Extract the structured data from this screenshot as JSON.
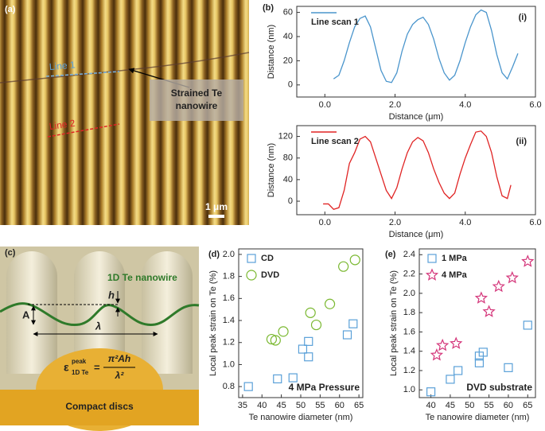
{
  "panel_a": {
    "label": "(a)",
    "line1": "Line 1",
    "line2": "Line 2",
    "callout": [
      "Strained Te",
      "nanowire"
    ],
    "scale": "1 μm"
  },
  "panel_c": {
    "label": "(c)",
    "wire": "1D Te nanowire",
    "h": "h",
    "A": "A",
    "lambda": "λ",
    "epsilon": "ε",
    "peak": "peak",
    "sub": "1D Te",
    "equals": "=",
    "numerator": "π²Ah",
    "denominator": "λ²",
    "disc": "Compact discs"
  },
  "chart_data": [
    {
      "type": "line",
      "panel_label": "(b)",
      "sub_label": "(i)",
      "xlabel": "Distance (μm)",
      "ylabel": "Distance (nm)",
      "x": [
        0.25,
        0.4,
        0.55,
        0.7,
        0.85,
        1.0,
        1.15,
        1.3,
        1.45,
        1.6,
        1.75,
        1.9,
        2.05,
        2.2,
        2.35,
        2.5,
        2.65,
        2.8,
        2.95,
        3.1,
        3.25,
        3.4,
        3.55,
        3.7,
        3.85,
        4.0,
        4.15,
        4.3,
        4.45,
        4.6,
        4.75,
        4.9,
        5.05,
        5.2,
        5.35,
        5.5
      ],
      "series": [
        {
          "name": "Line scan 1",
          "color": "#4a95cc",
          "values": [
            5,
            8,
            20,
            35,
            48,
            55,
            57,
            48,
            30,
            12,
            3,
            2,
            10,
            28,
            42,
            50,
            54,
            56,
            50,
            38,
            22,
            10,
            4,
            8,
            20,
            35,
            48,
            58,
            62,
            60,
            45,
            25,
            10,
            5,
            15,
            26
          ]
        }
      ],
      "xlim": [
        -0.8,
        6.0
      ],
      "xticks": [
        {
          "value": 0,
          "label": "0.0"
        },
        {
          "value": 2,
          "label": "2.0"
        },
        {
          "value": 4,
          "label": "4.0"
        },
        {
          "value": 6,
          "label": "6.0"
        }
      ],
      "ylim": [
        -10,
        65
      ],
      "yticks": [
        0,
        20,
        40,
        60
      ]
    },
    {
      "type": "line",
      "sub_label": "(ii)",
      "xlabel": "Distance (μm)",
      "ylabel": "Distance (nm)",
      "x": [
        -0.05,
        0.1,
        0.25,
        0.4,
        0.55,
        0.7,
        0.85,
        1.0,
        1.15,
        1.3,
        1.45,
        1.6,
        1.75,
        1.9,
        2.05,
        2.2,
        2.35,
        2.5,
        2.65,
        2.8,
        2.95,
        3.1,
        3.25,
        3.4,
        3.55,
        3.7,
        3.85,
        4.0,
        4.15,
        4.3,
        4.45,
        4.6,
        4.75,
        4.9,
        5.05,
        5.2,
        5.3
      ],
      "series": [
        {
          "name": "Line scan 2",
          "color": "#e02424",
          "values": [
            -5,
            -5,
            -15,
            -12,
            20,
            70,
            90,
            115,
            120,
            110,
            80,
            50,
            20,
            5,
            25,
            60,
            90,
            110,
            118,
            112,
            90,
            60,
            35,
            15,
            5,
            15,
            50,
            80,
            105,
            128,
            130,
            120,
            90,
            45,
            10,
            5,
            30
          ]
        }
      ],
      "xlim": [
        -0.8,
        6.0
      ],
      "xticks": [
        {
          "value": 0,
          "label": "0.0"
        },
        {
          "value": 2,
          "label": "2.0"
        },
        {
          "value": 4,
          "label": "4.0"
        },
        {
          "value": 6,
          "label": "6.0"
        }
      ],
      "ylim": [
        -25,
        140
      ],
      "yticks": [
        0,
        40,
        80,
        120
      ]
    },
    {
      "type": "scatter",
      "panel_label": "(d)",
      "xlabel": "Te nanowire diameter (nm)",
      "ylabel": "Local peak strain on Te (%)",
      "annotation": "4 MPa Pressure",
      "series": [
        {
          "name": "CD",
          "color": "#5aa0d8",
          "marker": "square",
          "x": [
            36.5,
            44,
            48,
            50.5,
            52,
            52,
            62,
            63.5
          ],
          "values": [
            0.8,
            0.87,
            0.88,
            1.14,
            1.07,
            1.21,
            1.27,
            1.37
          ]
        },
        {
          "name": "DVD",
          "color": "#7ab830",
          "marker": "circle",
          "x": [
            42.5,
            43.5,
            45.5,
            52.5,
            54,
            57.5,
            61,
            64
          ],
          "values": [
            1.23,
            1.22,
            1.3,
            1.47,
            1.36,
            1.55,
            1.89,
            1.95
          ]
        }
      ],
      "xlim": [
        34,
        66
      ],
      "xticks": [
        35,
        40,
        45,
        50,
        55,
        60,
        65
      ],
      "ylim": [
        0.7,
        2.05
      ],
      "yticks": [
        0.8,
        {
          "value": 1,
          "label": "1.0"
        },
        1.2,
        1.4,
        1.6,
        1.8,
        {
          "value": 2,
          "label": "2.0"
        }
      ]
    },
    {
      "type": "scatter",
      "panel_label": "(e)",
      "xlabel": "Te nanowire diameter (nm)",
      "ylabel": "Local peak strain on Te (%)",
      "annotation": "DVD substrate",
      "series": [
        {
          "name": "1 MPa",
          "color": "#5aa0d8",
          "marker": "square",
          "x": [
            40,
            45,
            47,
            52.5,
            52.5,
            53.5,
            60,
            65
          ],
          "values": [
            0.98,
            1.11,
            1.2,
            1.28,
            1.35,
            1.39,
            1.23,
            1.67
          ]
        },
        {
          "name": "4 MPa",
          "color": "#d4357a",
          "marker": "star",
          "x": [
            41.5,
            43,
            46.5,
            53,
            55,
            57.5,
            61,
            65
          ],
          "values": [
            1.36,
            1.46,
            1.48,
            1.95,
            1.81,
            2.07,
            2.16,
            2.33
          ]
        }
      ],
      "xlim": [
        37,
        67
      ],
      "xticks": [
        40,
        45,
        50,
        55,
        60,
        65
      ],
      "ylim": [
        0.92,
        2.46
      ],
      "yticks": [
        {
          "value": 1,
          "label": "1.0"
        },
        1.2,
        1.4,
        1.6,
        1.8,
        {
          "value": 2,
          "label": "2.0"
        },
        2.2,
        2.4
      ]
    }
  ]
}
